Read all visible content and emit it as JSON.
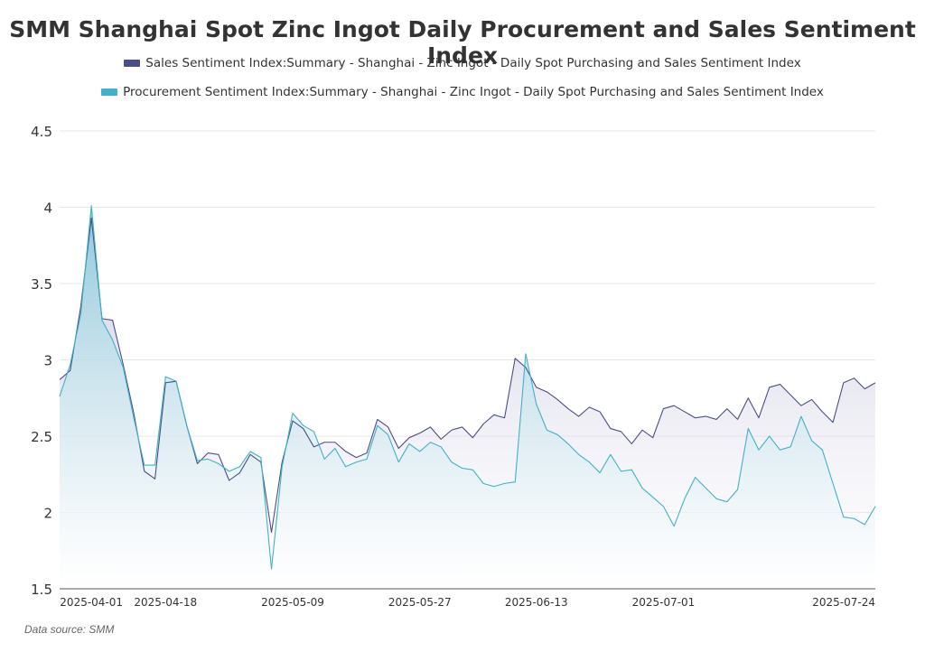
{
  "chart_data": {
    "type": "area",
    "title": "SMM Shanghai Spot Zinc Ingot Daily Procurement and Sales Sentiment Index",
    "source_label": "Data source:  SMM",
    "ylim": [
      1.5,
      4.5
    ],
    "y_ticks": [
      "1.5",
      "2",
      "2.5",
      "3",
      "3.5",
      "4",
      "4.5"
    ],
    "x_tick_labels": [
      "2025-04-01",
      "2025-04-18",
      "2025-05-09",
      "2025-05-27",
      "2025-06-13",
      "2025-07-01",
      "2025-07-24"
    ],
    "x_tick_index": [
      3,
      10,
      22,
      34,
      45,
      57,
      74
    ],
    "grid": true,
    "legend_position": "top",
    "series": [
      {
        "name": "Sales Sentiment Index:Summary - Shanghai - Zinc Ingot - Daily Spot Purchasing and Sales Sentiment Index",
        "color": "#4a4f8a",
        "fill": "#c9c7de",
        "values": [
          2.87,
          2.93,
          3.35,
          3.93,
          3.27,
          3.26,
          2.97,
          2.65,
          2.27,
          2.22,
          2.85,
          2.86,
          2.57,
          2.32,
          2.39,
          2.38,
          2.21,
          2.26,
          2.38,
          2.33,
          1.87,
          2.33,
          2.6,
          2.55,
          2.43,
          2.46,
          2.46,
          2.4,
          2.36,
          2.39,
          2.61,
          2.56,
          2.42,
          2.49,
          2.52,
          2.56,
          2.48,
          2.54,
          2.56,
          2.49,
          2.58,
          2.64,
          2.62,
          3.01,
          2.95,
          2.82,
          2.79,
          2.74,
          2.68,
          2.63,
          2.69,
          2.66,
          2.55,
          2.53,
          2.45,
          2.54,
          2.49,
          2.68,
          2.7,
          2.66,
          2.62,
          2.63,
          2.61,
          2.68,
          2.61,
          2.75,
          2.62,
          2.82,
          2.84,
          2.77,
          2.7,
          2.74,
          2.66,
          2.59,
          2.85,
          2.88,
          2.81,
          2.85
        ]
      },
      {
        "name": "Procurement Sentiment Index:Summary - Shanghai - Zinc Ingot - Daily Spot Purchasing and Sales Sentiment Index",
        "color": "#3fb2c8",
        "fill": "#a9d8e2",
        "values": [
          2.76,
          2.97,
          3.3,
          4.01,
          3.26,
          3.13,
          2.95,
          2.62,
          2.31,
          2.31,
          2.89,
          2.86,
          2.57,
          2.34,
          2.35,
          2.32,
          2.27,
          2.3,
          2.4,
          2.36,
          1.63,
          2.3,
          2.65,
          2.57,
          2.53,
          2.35,
          2.42,
          2.3,
          2.33,
          2.35,
          2.57,
          2.51,
          2.33,
          2.45,
          2.4,
          2.46,
          2.43,
          2.33,
          2.29,
          2.28,
          2.19,
          2.17,
          2.19,
          2.2,
          3.04,
          2.71,
          2.54,
          2.51,
          2.45,
          2.38,
          2.33,
          2.26,
          2.38,
          2.27,
          2.28,
          2.16,
          2.1,
          2.04,
          1.91,
          2.09,
          2.23,
          2.16,
          2.09,
          2.07,
          2.15,
          2.55,
          2.41,
          2.5,
          2.41,
          2.43,
          2.63,
          2.47,
          2.41,
          2.19,
          1.97,
          1.96,
          1.92,
          2.04
        ]
      }
    ]
  }
}
